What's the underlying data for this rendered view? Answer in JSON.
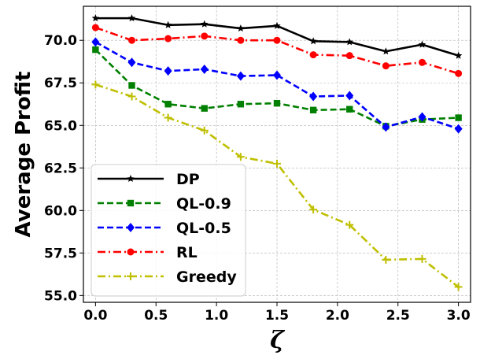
{
  "chart_data": {
    "type": "line",
    "title": "",
    "xlabel": "ζ",
    "ylabel": "Average Profit",
    "xlim": [
      -0.1,
      3.1
    ],
    "ylim": [
      54.6,
      72.0
    ],
    "grid": true,
    "legend_position": "lower-left",
    "x": [
      0.0,
      0.3,
      0.6,
      0.9,
      1.2,
      1.5,
      1.8,
      2.1,
      2.4,
      2.7,
      3.0
    ],
    "x_ticks": [
      "0.0",
      "0.5",
      "1.0",
      "1.5",
      "2.0",
      "2.5",
      "3.0"
    ],
    "y_ticks": [
      "55.0",
      "57.5",
      "60.0",
      "62.5",
      "65.0",
      "67.5",
      "70.0"
    ],
    "series": [
      {
        "name": "DP",
        "color": "#000000",
        "dash": "solid",
        "marker": "star",
        "values": [
          71.3,
          71.3,
          70.9,
          70.95,
          70.7,
          70.85,
          69.95,
          69.9,
          69.35,
          69.75,
          69.1
        ]
      },
      {
        "name": "QL-0.9",
        "color": "#008000",
        "dash": "dashed",
        "marker": "square",
        "values": [
          69.45,
          67.35,
          66.25,
          66.0,
          66.25,
          66.3,
          65.9,
          65.95,
          64.95,
          65.35,
          65.45
        ]
      },
      {
        "name": "QL-0.5",
        "color": "#0000ff",
        "dash": "dashed",
        "marker": "diamond",
        "values": [
          69.9,
          68.7,
          68.2,
          68.3,
          67.9,
          67.95,
          66.7,
          66.75,
          64.9,
          65.5,
          64.8
        ]
      },
      {
        "name": "RL",
        "color": "#ff0000",
        "dash": "dashdot",
        "marker": "circle",
        "values": [
          70.75,
          70.0,
          70.1,
          70.25,
          70.0,
          70.0,
          69.15,
          69.1,
          68.5,
          68.7,
          68.05
        ]
      },
      {
        "name": "Greedy",
        "color": "#bfbf00",
        "dash": "dashdot",
        "marker": "plus",
        "values": [
          67.4,
          66.7,
          65.45,
          64.7,
          63.15,
          62.75,
          60.05,
          59.15,
          57.1,
          57.15,
          55.5
        ]
      }
    ]
  }
}
